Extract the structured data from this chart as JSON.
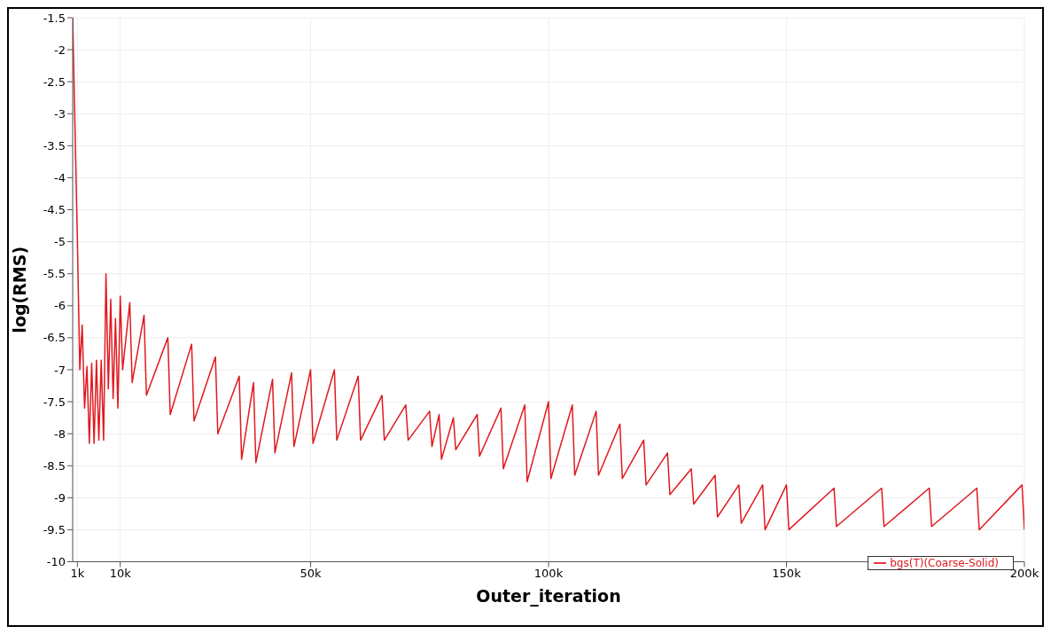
{
  "chart_data": {
    "type": "line",
    "xlabel": "Outer_iteration",
    "ylabel": "log(RMS)",
    "xlim": [
      0,
      200000
    ],
    "xticks": [
      {
        "value": 1000,
        "label": "1k"
      },
      {
        "value": 10000,
        "label": "10k"
      },
      {
        "value": 50000,
        "label": "50k"
      },
      {
        "value": 100000,
        "label": "100k"
      },
      {
        "value": 150000,
        "label": "150k"
      },
      {
        "value": 200000,
        "label": "200k"
      }
    ],
    "ylim": [
      -10,
      -1.5
    ],
    "yticks": [
      -10,
      -9.5,
      -9,
      -8.5,
      -8,
      -7.5,
      -7,
      -6.5,
      -6,
      -5.5,
      -5,
      -4.5,
      -4,
      -3.5,
      -3,
      -2.5,
      -2,
      -1.5
    ],
    "grid": true,
    "legend": "bottom right",
    "marker": "none",
    "line_style": "solid",
    "series": [
      {
        "name": "bgs(T)(Coarse-Solid)",
        "color": "#e0191f",
        "x": [
          0,
          1000,
          1500,
          2000,
          2500,
          3000,
          3500,
          4000,
          4500,
          5000,
          5500,
          6000,
          6500,
          7000,
          7500,
          8000,
          8500,
          9000,
          9500,
          10000,
          10500,
          12000,
          12500,
          15000,
          15500,
          20000,
          20500,
          25000,
          25500,
          30000,
          30500,
          35000,
          35500,
          38000,
          38500,
          42000,
          42500,
          46000,
          46500,
          50000,
          50500,
          55000,
          55500,
          60000,
          60500,
          65000,
          65500,
          70000,
          70500,
          75000,
          75500,
          77000,
          77500,
          80000,
          80500,
          85000,
          85500,
          90000,
          90500,
          95000,
          95500,
          100000,
          100500,
          105000,
          105500,
          110000,
          110500,
          115000,
          115500,
          120000,
          120500,
          125000,
          125500,
          130000,
          130500,
          135000,
          135500,
          140000,
          140500,
          145000,
          145500,
          150000,
          150500,
          160000,
          160500,
          170000,
          170500,
          180000,
          180500,
          190000,
          190500,
          199500,
          200000
        ],
        "values": [
          -1.5,
          -5.0,
          -7.0,
          -6.3,
          -7.6,
          -6.95,
          -8.15,
          -6.9,
          -8.15,
          -6.85,
          -8.1,
          -6.85,
          -8.1,
          -5.5,
          -7.3,
          -5.9,
          -7.45,
          -6.2,
          -7.6,
          -5.85,
          -7.0,
          -5.95,
          -7.2,
          -6.15,
          -7.4,
          -6.5,
          -7.7,
          -6.6,
          -7.8,
          -6.8,
          -8.0,
          -7.1,
          -8.4,
          -7.2,
          -8.45,
          -7.15,
          -8.3,
          -7.05,
          -8.2,
          -7.0,
          -8.15,
          -7.0,
          -8.1,
          -7.1,
          -8.1,
          -7.4,
          -8.1,
          -7.55,
          -8.1,
          -7.65,
          -8.2,
          -7.7,
          -8.4,
          -7.75,
          -8.25,
          -7.7,
          -8.35,
          -7.6,
          -8.55,
          -7.55,
          -8.75,
          -7.5,
          -8.7,
          -7.55,
          -8.65,
          -7.65,
          -8.65,
          -7.85,
          -8.7,
          -8.1,
          -8.8,
          -8.3,
          -8.95,
          -8.55,
          -9.1,
          -8.65,
          -9.3,
          -8.8,
          -9.4,
          -8.8,
          -9.5,
          -8.8,
          -9.5,
          -8.85,
          -9.45,
          -8.85,
          -9.45,
          -8.85,
          -9.45,
          -8.85,
          -9.5,
          -8.8,
          -9.5
        ]
      }
    ]
  }
}
